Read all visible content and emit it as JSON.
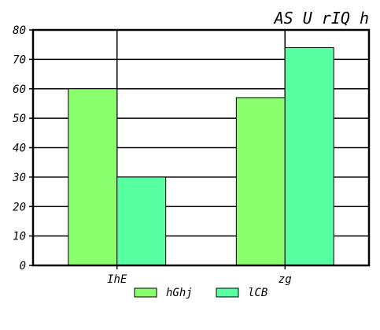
{
  "chart_data": {
    "type": "bar",
    "title": "AS U rIQ h",
    "xlabel": "",
    "ylabel": "",
    "categories": [
      "IhE",
      "zg"
    ],
    "series": [
      {
        "name": "hGhj",
        "values": [
          60,
          57
        ],
        "color": "#8aff6e"
      },
      {
        "name": "lCB",
        "values": [
          30,
          74
        ],
        "color": "#56ffa0"
      }
    ],
    "ylim": [
      0,
      80
    ],
    "yticks": [
      "0",
      "10",
      "20",
      "30",
      "40",
      "50",
      "60",
      "70",
      "80"
    ],
    "grid": true,
    "legend": "bottom-center"
  }
}
